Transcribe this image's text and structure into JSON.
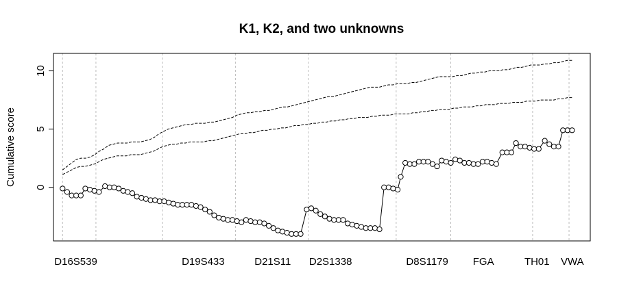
{
  "chart_data": {
    "type": "line",
    "title": "K1, K2, and two unknowns",
    "xlabel": "",
    "ylabel": "Cumulative score",
    "ylim": [
      -4.6,
      11.5
    ],
    "yticks": [
      0,
      5,
      10
    ],
    "xlim": [
      -3,
      174
    ],
    "grid": "vertical dashed lines at locus boundaries",
    "locus_boundaries": [
      0,
      11,
      33,
      57,
      81,
      110,
      128,
      155,
      167
    ],
    "loci": [
      {
        "name": "D16S539",
        "x": 0
      },
      {
        "name": "D19S433",
        "x": 42
      },
      {
        "name": "D21S11",
        "x": 66
      },
      {
        "name": "D2S1338",
        "x": 84
      },
      {
        "name": "D8S1179",
        "x": 116
      },
      {
        "name": "FGA",
        "x": 138
      },
      {
        "name": "TH01",
        "x": 155
      },
      {
        "name": "VWA",
        "x": 167
      }
    ],
    "series": [
      {
        "style": "dashed-line",
        "y": [
          1.5,
          1.8,
          2.1,
          2.4,
          2.5,
          2.5,
          2.6,
          2.8,
          3.1,
          3.3,
          3.6,
          3.7,
          3.8,
          3.8,
          3.8,
          3.9,
          3.9,
          3.9,
          4.0,
          4.1,
          4.3,
          4.6,
          4.8,
          5.0,
          5.1,
          5.2,
          5.3,
          5.4,
          5.4,
          5.5,
          5.5,
          5.5,
          5.6,
          5.6,
          5.7,
          5.8,
          5.9,
          6.0,
          6.2,
          6.3,
          6.4,
          6.4,
          6.5,
          6.5,
          6.6,
          6.6,
          6.7,
          6.8,
          6.9,
          6.9,
          7.0,
          7.1,
          7.2,
          7.3,
          7.4,
          7.5,
          7.6,
          7.7,
          7.8,
          7.8,
          7.9,
          8.0,
          8.1,
          8.2,
          8.3,
          8.4,
          8.5,
          8.6,
          8.6,
          8.6,
          8.7,
          8.8,
          8.8,
          8.9,
          8.9,
          8.9,
          9.0,
          9.0,
          9.1,
          9.2,
          9.3,
          9.4,
          9.5,
          9.5,
          9.5,
          9.5,
          9.6,
          9.6,
          9.7,
          9.8,
          9.8,
          9.9,
          9.9,
          10.0,
          10.0,
          10.0,
          10.1,
          10.1,
          10.2,
          10.3,
          10.3,
          10.4,
          10.5,
          10.5,
          10.5,
          10.6,
          10.6,
          10.7,
          10.7,
          10.8,
          10.9,
          10.9
        ]
      },
      {
        "style": "dashed-line",
        "y": [
          1.1,
          1.3,
          1.5,
          1.7,
          1.8,
          1.8,
          1.9,
          2.0,
          2.2,
          2.4,
          2.5,
          2.6,
          2.7,
          2.7,
          2.7,
          2.8,
          2.8,
          2.8,
          2.9,
          3.0,
          3.1,
          3.3,
          3.5,
          3.6,
          3.7,
          3.7,
          3.8,
          3.8,
          3.9,
          3.9,
          3.9,
          3.9,
          4.0,
          4.0,
          4.1,
          4.2,
          4.3,
          4.4,
          4.5,
          4.6,
          4.6,
          4.7,
          4.7,
          4.8,
          4.9,
          4.9,
          5.0,
          5.0,
          5.1,
          5.1,
          5.2,
          5.3,
          5.3,
          5.4,
          5.4,
          5.5,
          5.5,
          5.6,
          5.6,
          5.7,
          5.7,
          5.8,
          5.8,
          5.9,
          5.9,
          6.0,
          6.0,
          6.0,
          6.1,
          6.1,
          6.2,
          6.2,
          6.2,
          6.3,
          6.3,
          6.3,
          6.3,
          6.4,
          6.4,
          6.5,
          6.5,
          6.6,
          6.6,
          6.7,
          6.7,
          6.7,
          6.8,
          6.8,
          6.9,
          6.9,
          6.9,
          7.0,
          7.0,
          7.1,
          7.1,
          7.1,
          7.2,
          7.2,
          7.2,
          7.3,
          7.3,
          7.3,
          7.4,
          7.4,
          7.4,
          7.5,
          7.5,
          7.5,
          7.5,
          7.6,
          7.6,
          7.7,
          7.7
        ]
      },
      {
        "style": "points-with-segments",
        "points": [
          [
            0,
            -0.1
          ],
          [
            1.5,
            -0.4
          ],
          [
            3,
            -0.7
          ],
          [
            4.5,
            -0.7
          ],
          [
            6,
            -0.7
          ],
          [
            7.5,
            -0.1
          ],
          [
            9,
            -0.2
          ],
          [
            10.5,
            -0.3
          ],
          [
            12,
            -0.4
          ],
          [
            14,
            0.1
          ],
          [
            15.5,
            0.0
          ],
          [
            17,
            0.0
          ],
          [
            18.5,
            -0.1
          ],
          [
            20,
            -0.3
          ],
          [
            21.5,
            -0.4
          ],
          [
            23,
            -0.5
          ],
          [
            24.5,
            -0.8
          ],
          [
            26,
            -0.9
          ],
          [
            27.5,
            -1.0
          ],
          [
            29,
            -1.1
          ],
          [
            30.5,
            -1.1
          ],
          [
            32,
            -1.2
          ],
          [
            33.5,
            -1.2
          ],
          [
            35,
            -1.3
          ],
          [
            36.5,
            -1.4
          ],
          [
            38,
            -1.5
          ],
          [
            39.5,
            -1.5
          ],
          [
            41,
            -1.5
          ],
          [
            42.5,
            -1.5
          ],
          [
            44,
            -1.6
          ],
          [
            45.5,
            -1.7
          ],
          [
            47,
            -1.9
          ],
          [
            48.5,
            -2.1
          ],
          [
            50,
            -2.4
          ],
          [
            51.5,
            -2.6
          ],
          [
            53,
            -2.7
          ],
          [
            54.5,
            -2.8
          ],
          [
            56,
            -2.8
          ],
          [
            57.5,
            -2.9
          ],
          [
            59,
            -3.0
          ],
          [
            60.5,
            -2.8
          ],
          [
            62,
            -2.9
          ],
          [
            63.5,
            -3.0
          ],
          [
            65,
            -3.0
          ],
          [
            66.5,
            -3.1
          ],
          [
            68,
            -3.3
          ],
          [
            69.5,
            -3.5
          ],
          [
            71,
            -3.7
          ],
          [
            72.5,
            -3.8
          ],
          [
            74,
            -3.9
          ],
          [
            75.5,
            -4.0
          ],
          [
            77,
            -4.0
          ],
          [
            78.5,
            -4.0
          ],
          [
            80.5,
            -1.9
          ],
          [
            82,
            -1.8
          ],
          [
            83.5,
            -2.0
          ],
          [
            85,
            -2.3
          ],
          [
            86.5,
            -2.5
          ],
          [
            88,
            -2.7
          ],
          [
            89.5,
            -2.8
          ],
          [
            91,
            -2.8
          ],
          [
            92.5,
            -2.8
          ],
          [
            94,
            -3.1
          ],
          [
            95.5,
            -3.2
          ],
          [
            97,
            -3.3
          ],
          [
            98.5,
            -3.4
          ],
          [
            100,
            -3.5
          ],
          [
            101.5,
            -3.5
          ],
          [
            103,
            -3.5
          ],
          [
            104.5,
            -3.6
          ],
          [
            106,
            0.0
          ],
          [
            107.5,
            0.0
          ],
          [
            109,
            -0.1
          ],
          [
            110.5,
            -0.2
          ],
          [
            111.5,
            0.9
          ],
          [
            113,
            2.1
          ],
          [
            114.5,
            2.0
          ],
          [
            116,
            2.0
          ],
          [
            117.5,
            2.2
          ],
          [
            119,
            2.2
          ],
          [
            120.5,
            2.2
          ],
          [
            122,
            2.0
          ],
          [
            123.5,
            1.8
          ],
          [
            125,
            2.3
          ],
          [
            126.5,
            2.2
          ],
          [
            128,
            2.1
          ],
          [
            129.5,
            2.4
          ],
          [
            131,
            2.3
          ],
          [
            132.5,
            2.1
          ],
          [
            134,
            2.1
          ],
          [
            135.5,
            2.0
          ],
          [
            137,
            2.0
          ],
          [
            138.5,
            2.2
          ],
          [
            140,
            2.2
          ],
          [
            141.5,
            2.1
          ],
          [
            143,
            2.0
          ],
          [
            145,
            3.0
          ],
          [
            146.5,
            3.0
          ],
          [
            148,
            3.0
          ],
          [
            149.5,
            3.8
          ],
          [
            151,
            3.5
          ],
          [
            152.5,
            3.5
          ],
          [
            154,
            3.4
          ],
          [
            155.5,
            3.3
          ],
          [
            157,
            3.3
          ],
          [
            159,
            4.0
          ],
          [
            160.5,
            3.7
          ],
          [
            162,
            3.5
          ],
          [
            163.5,
            3.5
          ],
          [
            165,
            4.9
          ],
          [
            166.5,
            4.9
          ],
          [
            168,
            4.9
          ]
        ]
      }
    ]
  }
}
